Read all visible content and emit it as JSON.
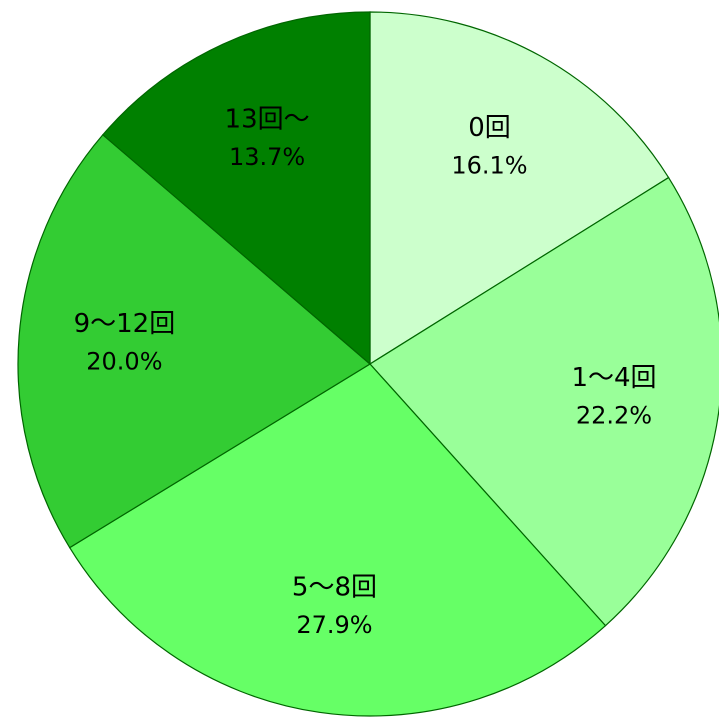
{
  "chart_data": {
    "type": "pie",
    "categories": [
      "0回",
      "1～4回",
      "5～8回",
      "9～12回",
      "13回～"
    ],
    "values": [
      16.1,
      22.2,
      27.9,
      20.0,
      13.7
    ],
    "value_labels": [
      "16.1%",
      "22.2%",
      "27.9%",
      "20.0%",
      "13.7%"
    ],
    "colors": [
      "#ccffcc",
      "#99ff99",
      "#66ff66",
      "#33cc33",
      "#008000"
    ]
  }
}
